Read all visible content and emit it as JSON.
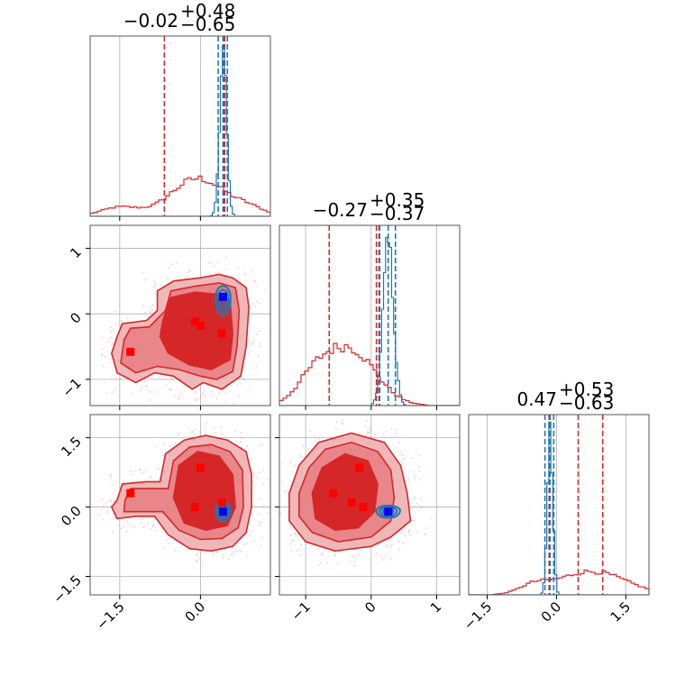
{
  "chart_data": {
    "type": "corner",
    "colors": {
      "red": "#d62728",
      "blue": "#1f77b4",
      "grid": "#b0b0b0",
      "axis": "#555555"
    },
    "parameters": [
      {
        "range": [
          -2.05,
          1.3
        ],
        "ticks": [
          -1.5,
          0.0
        ],
        "tick_labels": [
          "−1.5",
          "0.0"
        ]
      },
      {
        "range": [
          -1.4,
          1.35
        ],
        "ticks": [
          -1,
          0,
          1
        ],
        "tick_labels": [
          "−1",
          "0",
          "1"
        ]
      },
      {
        "range": [
          -1.9,
          2.0
        ],
        "ticks": [
          -1.5,
          0.0,
          1.5
        ],
        "tick_labels": [
          "−1.5",
          "0.0",
          "1.5"
        ]
      }
    ],
    "titles": [
      {
        "main": "−0.02",
        "sup": "+0.48",
        "sub": "−0.65"
      },
      {
        "main": "−0.27",
        "sup": "+0.35",
        "sub": "−0.37"
      },
      {
        "main": "0.47",
        "sup": "+0.53",
        "sub": "−0.63"
      }
    ],
    "quantiles": {
      "red": [
        [
          -0.67,
          0.43,
          0.45
        ],
        [
          -0.64,
          0.08,
          0.12
        ],
        [
          -0.16,
          0.47,
          1.0
        ]
      ],
      "blue": [
        [
          0.33,
          0.42,
          0.5
        ],
        [
          0.13,
          0.26,
          0.37
        ],
        [
          -0.25,
          -0.14,
          -0.06
        ]
      ]
    },
    "hist": {
      "red": [
        {
          "center": -0.05,
          "sigma": 0.5,
          "peak": 0.21,
          "tail": [
            [
              -1.5,
              0.35,
              0.05
            ],
            [
              0.9,
              0.3,
              0.04
            ]
          ]
        },
        {
          "center": -0.35,
          "sigma": 0.4,
          "peak": 0.32,
          "tail": [
            [
              -0.9,
              0.25,
              0.1
            ]
          ]
        },
        {
          "center": 0.75,
          "sigma": 0.75,
          "peak": 0.13,
          "tail": [
            [
              -0.5,
              0.3,
              0.04
            ]
          ]
        }
      ],
      "blue": [
        {
          "center": 0.42,
          "sigma": 0.065,
          "peak": 0.91
        },
        {
          "center": 0.26,
          "sigma": 0.08,
          "peak": 0.9
        },
        {
          "center": -0.14,
          "sigma": 0.06,
          "peak": 0.9
        }
      ]
    },
    "markers": {
      "red": [
        {
          "pair": "1-0",
          "points": [
            [
              -1.3,
              -0.58
            ],
            [
              -0.1,
              -0.12
            ],
            [
              0.0,
              -0.18
            ],
            [
              0.4,
              -0.3
            ]
          ]
        },
        {
          "pair": "2-0",
          "points": [
            [
              -1.3,
              0.3
            ],
            [
              -0.1,
              0.0
            ],
            [
              0.0,
              0.85
            ],
            [
              0.4,
              0.1
            ]
          ]
        },
        {
          "pair": "2-1",
          "points": [
            [
              -0.58,
              0.3
            ],
            [
              -0.3,
              0.1
            ],
            [
              -0.18,
              0.85
            ],
            [
              -0.12,
              0.0
            ]
          ]
        }
      ],
      "blue": [
        {
          "pair": "1-0",
          "points": [
            [
              0.42,
              0.26
            ]
          ]
        },
        {
          "pair": "2-0",
          "points": [
            [
              0.42,
              -0.1
            ]
          ]
        },
        {
          "pair": "2-1",
          "points": [
            [
              0.26,
              -0.1
            ]
          ]
        }
      ]
    }
  }
}
